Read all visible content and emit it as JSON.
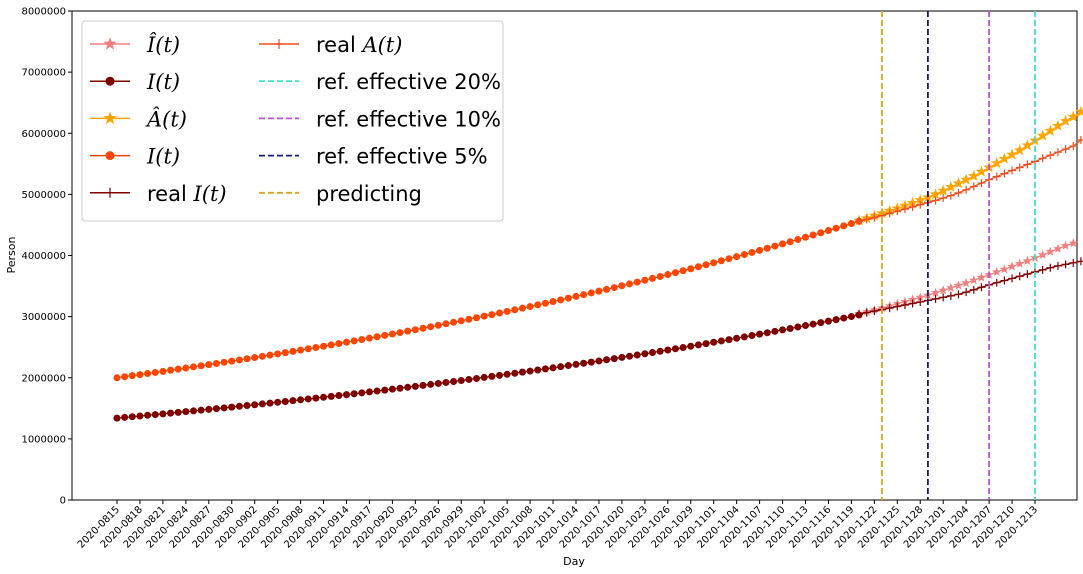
{
  "chart_data": {
    "type": "line",
    "xlabel": "Day",
    "ylabel": "Person",
    "ylim": [
      0,
      8000000
    ],
    "yticks": [
      "0",
      "1000000",
      "2000000",
      "3000000",
      "4000000",
      "5000000",
      "6000000",
      "7000000",
      "8000000"
    ],
    "xticks": [
      "2020-0815",
      "2020-0818",
      "2020-0821",
      "2020-0824",
      "2020-0827",
      "2020-0830",
      "2020-0902",
      "2020-0905",
      "2020-0908",
      "2020-0911",
      "2020-0914",
      "2020-0917",
      "2020-0920",
      "2020-0923",
      "2020-0926",
      "2020-0929",
      "2020-1002",
      "2020-1005",
      "2020-1008",
      "2020-1011",
      "2020-1014",
      "2020-1017",
      "2020-1020",
      "2020-1023",
      "2020-1026",
      "2020-1029",
      "2020-1101",
      "2020-1104",
      "2020-1107",
      "2020-1110",
      "2020-1113",
      "2020-1116",
      "2020-1119",
      "2020-1122",
      "2020-1125",
      "2020-1128",
      "2020-1201",
      "2020-1204",
      "2020-1207",
      "2020-1210",
      "2020-1213"
    ],
    "day_step": 1,
    "grid": false,
    "legend_position": "top-left",
    "legend_columns": 2,
    "series": [
      {
        "key": "I_hat",
        "name_pre": "",
        "name_sym": "Î(t)",
        "marker": "star",
        "color": "#f08080",
        "marker_size": 5,
        "x_start": 97,
        "values": [
          3050000,
          3080000,
          3110000,
          3140000,
          3175000,
          3210000,
          3245000,
          3280000,
          3315000,
          3350000,
          3390000,
          3430000,
          3470000,
          3510000,
          3550000,
          3595000,
          3640000,
          3685000,
          3730000,
          3775000,
          3820000,
          3865000,
          3910000,
          3960000,
          4010000,
          4060000,
          4110000,
          4160000,
          4200000
        ]
      },
      {
        "key": "I_fit",
        "name_pre": "",
        "name_sym": "I(t)",
        "marker": "circle",
        "color": "#800000",
        "marker_size": 3.5,
        "x_start": 0,
        "x_end": 97,
        "start": 1340000,
        "k": 0.0084
      },
      {
        "key": "A_hat",
        "name_pre": "",
        "name_sym": "Â(t)",
        "marker": "star",
        "color": "#ffa500",
        "marker_size": 6,
        "x_start": 97,
        "values": [
          4570000,
          4610000,
          4650000,
          4690000,
          4730000,
          4770000,
          4815000,
          4860000,
          4905000,
          4950000,
          5000000,
          5060000,
          5120000,
          5180000,
          5240000,
          5300000,
          5370000,
          5440000,
          5510000,
          5580000,
          5650000,
          5720000,
          5800000,
          5880000,
          5960000,
          6040000,
          6120000,
          6200000,
          6270000,
          6350000
        ]
      },
      {
        "key": "A_fit",
        "name_pre": "",
        "name_sym": "I(t)",
        "marker": "circle",
        "color": "#ff4500",
        "marker_size": 3.5,
        "x_start": 0,
        "x_end": 97,
        "start": 2000000,
        "k": 0.0085
      },
      {
        "key": "I_real",
        "name_pre": "real ",
        "name_sym": "I(t)",
        "marker": "plus",
        "color": "#800000",
        "marker_size": 4,
        "x_start": 97,
        "values": [
          3040000,
          3065000,
          3090000,
          3115000,
          3140000,
          3165000,
          3190000,
          3215000,
          3240000,
          3265000,
          3290000,
          3315000,
          3340000,
          3365000,
          3400000,
          3440000,
          3480000,
          3520000,
          3555000,
          3590000,
          3625000,
          3660000,
          3695000,
          3730000,
          3765000,
          3800000,
          3830000,
          3855000,
          3880000,
          3905000
        ]
      },
      {
        "key": "A_real",
        "name_pre": "real ",
        "name_sym": "A(t)",
        "marker": "plus",
        "color": "#f04e1e",
        "marker_size": 4,
        "x_start": 97,
        "values": [
          4560000,
          4590000,
          4620000,
          4655000,
          4690000,
          4725000,
          4760000,
          4795000,
          4830000,
          4865000,
          4900000,
          4940000,
          4980000,
          5025000,
          5075000,
          5130000,
          5185000,
          5240000,
          5290000,
          5340000,
          5390000,
          5440000,
          5490000,
          5540000,
          5590000,
          5640000,
          5690000,
          5740000,
          5790000,
          5890000
        ]
      }
    ],
    "vlines": [
      {
        "label": "ref. effective 20%",
        "x": 120,
        "color": "#40e0d0"
      },
      {
        "label": "ref. effective 10%",
        "x": 114,
        "color": "#ba55d3"
      },
      {
        "label": "ref. effective 5%",
        "x": 106,
        "color": "#191970"
      },
      {
        "label": "predicting",
        "x": 100,
        "color": "#daa520"
      }
    ]
  }
}
